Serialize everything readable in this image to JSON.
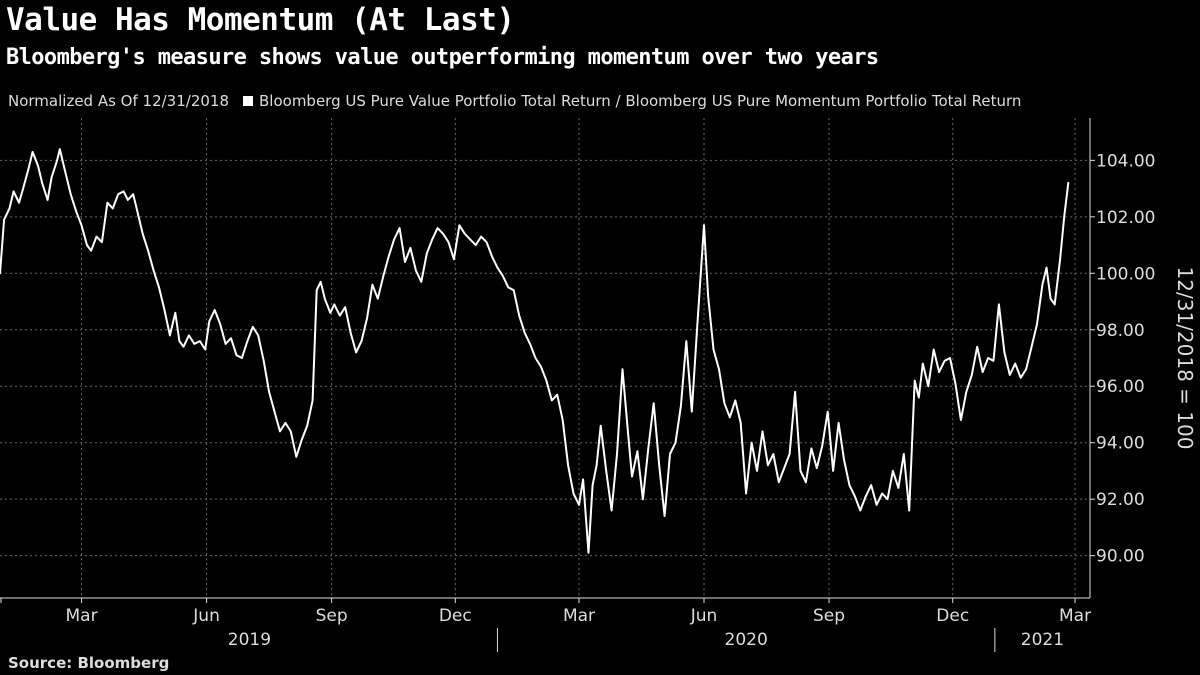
{
  "header": {
    "title": "Value Has Momentum (At Last)",
    "subtitle": "Bloomberg's measure shows value outperforming momentum over two years",
    "note": "Normalized As Of 12/31/2018",
    "legend_label": "Bloomberg US Pure Value Portfolio Total Return / Bloomberg US Pure Momentum Portfolio Total Return"
  },
  "footer": {
    "source": "Source: Bloomberg"
  },
  "colors": {
    "background": "#000000",
    "line": "#ffffff",
    "grid": "#666666",
    "text": "#dddddd"
  },
  "chart_data": {
    "type": "line",
    "title": "Value Has Momentum (At Last)",
    "ylabel": "12/31/2018 = 100",
    "xlabel": "",
    "ylim": [
      88.5,
      105.5
    ],
    "yticks": [
      "104.00",
      "102.00",
      "100.00",
      "98.00",
      "96.00",
      "94.00",
      "92.00",
      "90.00"
    ],
    "x_domain": [
      "2018-12-31",
      "2021-03-12"
    ],
    "x_ticks": [
      {
        "label": "Mar",
        "date": "2019-03-01"
      },
      {
        "label": "Jun",
        "date": "2019-06-01"
      },
      {
        "label": "Sep",
        "date": "2019-09-01"
      },
      {
        "label": "Dec",
        "date": "2019-12-01"
      },
      {
        "label": "Mar",
        "date": "2020-03-01"
      },
      {
        "label": "Jun",
        "date": "2020-06-01"
      },
      {
        "label": "Sep",
        "date": "2020-09-01"
      },
      {
        "label": "Dec",
        "date": "2020-12-01"
      },
      {
        "label": "Mar",
        "date": "2021-03-01"
      }
    ],
    "years": [
      {
        "label": "2019",
        "start": "2019-01-01",
        "end": "2020-01-01"
      },
      {
        "label": "2020",
        "start": "2020-01-01",
        "end": "2021-01-01"
      },
      {
        "label": "2021",
        "start": "2021-01-01",
        "end": "2021-03-12"
      }
    ],
    "year_separators": [
      "2020-01-01",
      "2021-01-01"
    ],
    "series": [
      {
        "name": "Bloomberg US Pure Value Portfolio Total Return / Bloomberg US Pure Momentum Portfolio Total Return",
        "points": [
          [
            "2018-12-31",
            100.0
          ],
          [
            "2019-01-03",
            101.9
          ],
          [
            "2019-01-07",
            102.3
          ],
          [
            "2019-01-10",
            102.9
          ],
          [
            "2019-01-14",
            102.5
          ],
          [
            "2019-01-17",
            103.0
          ],
          [
            "2019-01-21",
            103.7
          ],
          [
            "2019-01-24",
            104.3
          ],
          [
            "2019-01-28",
            103.8
          ],
          [
            "2019-01-31",
            103.2
          ],
          [
            "2019-02-04",
            102.6
          ],
          [
            "2019-02-07",
            103.4
          ],
          [
            "2019-02-11",
            104.0
          ],
          [
            "2019-02-13",
            104.4
          ],
          [
            "2019-02-17",
            103.6
          ],
          [
            "2019-02-21",
            102.8
          ],
          [
            "2019-02-25",
            102.2
          ],
          [
            "2019-03-01",
            101.7
          ],
          [
            "2019-03-05",
            101.0
          ],
          [
            "2019-03-08",
            100.8
          ],
          [
            "2019-03-12",
            101.3
          ],
          [
            "2019-03-16",
            101.1
          ],
          [
            "2019-03-20",
            102.5
          ],
          [
            "2019-03-24",
            102.3
          ],
          [
            "2019-03-28",
            102.8
          ],
          [
            "2019-04-01",
            102.9
          ],
          [
            "2019-04-04",
            102.6
          ],
          [
            "2019-04-08",
            102.8
          ],
          [
            "2019-04-11",
            102.2
          ],
          [
            "2019-04-15",
            101.4
          ],
          [
            "2019-04-19",
            100.8
          ],
          [
            "2019-04-23",
            100.1
          ],
          [
            "2019-04-27",
            99.5
          ],
          [
            "2019-05-01",
            98.7
          ],
          [
            "2019-05-05",
            97.8
          ],
          [
            "2019-05-09",
            98.6
          ],
          [
            "2019-05-12",
            97.6
          ],
          [
            "2019-05-15",
            97.4
          ],
          [
            "2019-05-19",
            97.8
          ],
          [
            "2019-05-23",
            97.5
          ],
          [
            "2019-05-27",
            97.6
          ],
          [
            "2019-05-31",
            97.3
          ],
          [
            "2019-06-03",
            98.3
          ],
          [
            "2019-06-07",
            98.7
          ],
          [
            "2019-06-11",
            98.2
          ],
          [
            "2019-06-15",
            97.5
          ],
          [
            "2019-06-19",
            97.7
          ],
          [
            "2019-06-23",
            97.1
          ],
          [
            "2019-06-27",
            97.0
          ],
          [
            "2019-07-01",
            97.6
          ],
          [
            "2019-07-05",
            98.1
          ],
          [
            "2019-07-09",
            97.8
          ],
          [
            "2019-07-13",
            96.9
          ],
          [
            "2019-07-17",
            95.8
          ],
          [
            "2019-07-21",
            95.1
          ],
          [
            "2019-07-25",
            94.4
          ],
          [
            "2019-07-29",
            94.7
          ],
          [
            "2019-08-02",
            94.4
          ],
          [
            "2019-08-06",
            93.5
          ],
          [
            "2019-08-10",
            94.1
          ],
          [
            "2019-08-14",
            94.6
          ],
          [
            "2019-08-18",
            95.5
          ],
          [
            "2019-08-21",
            99.4
          ],
          [
            "2019-08-24",
            99.7
          ],
          [
            "2019-08-27",
            99.1
          ],
          [
            "2019-08-31",
            98.6
          ],
          [
            "2019-09-03",
            98.9
          ],
          [
            "2019-09-07",
            98.5
          ],
          [
            "2019-09-11",
            98.8
          ],
          [
            "2019-09-15",
            97.9
          ],
          [
            "2019-09-19",
            97.2
          ],
          [
            "2019-09-23",
            97.6
          ],
          [
            "2019-09-27",
            98.4
          ],
          [
            "2019-10-01",
            99.6
          ],
          [
            "2019-10-05",
            99.1
          ],
          [
            "2019-10-09",
            99.9
          ],
          [
            "2019-10-13",
            100.6
          ],
          [
            "2019-10-17",
            101.2
          ],
          [
            "2019-10-21",
            101.6
          ],
          [
            "2019-10-25",
            100.4
          ],
          [
            "2019-10-29",
            100.9
          ],
          [
            "2019-11-02",
            100.1
          ],
          [
            "2019-11-06",
            99.7
          ],
          [
            "2019-11-10",
            100.7
          ],
          [
            "2019-11-14",
            101.2
          ],
          [
            "2019-11-18",
            101.6
          ],
          [
            "2019-11-22",
            101.4
          ],
          [
            "2019-11-26",
            101.1
          ],
          [
            "2019-11-30",
            100.5
          ],
          [
            "2019-12-04",
            101.7
          ],
          [
            "2019-12-08",
            101.4
          ],
          [
            "2019-12-12",
            101.2
          ],
          [
            "2019-12-16",
            101.0
          ],
          [
            "2019-12-20",
            101.3
          ],
          [
            "2019-12-24",
            101.1
          ],
          [
            "2019-12-28",
            100.6
          ],
          [
            "2020-01-01",
            100.2
          ],
          [
            "2020-01-05",
            99.9
          ],
          [
            "2020-01-09",
            99.5
          ],
          [
            "2020-01-13",
            99.4
          ],
          [
            "2020-01-17",
            98.5
          ],
          [
            "2020-01-21",
            97.9
          ],
          [
            "2020-01-25",
            97.5
          ],
          [
            "2020-01-29",
            97.0
          ],
          [
            "2020-02-02",
            96.7
          ],
          [
            "2020-02-06",
            96.2
          ],
          [
            "2020-02-10",
            95.5
          ],
          [
            "2020-02-14",
            95.7
          ],
          [
            "2020-02-18",
            94.8
          ],
          [
            "2020-02-22",
            93.2
          ],
          [
            "2020-02-26",
            92.2
          ],
          [
            "2020-03-01",
            91.8
          ],
          [
            "2020-03-04",
            92.7
          ],
          [
            "2020-03-08",
            90.1
          ],
          [
            "2020-03-11",
            92.5
          ],
          [
            "2020-03-14",
            93.2
          ],
          [
            "2020-03-17",
            94.6
          ],
          [
            "2020-03-21",
            93.0
          ],
          [
            "2020-03-25",
            91.6
          ],
          [
            "2020-03-29",
            93.6
          ],
          [
            "2020-04-02",
            96.6
          ],
          [
            "2020-04-06",
            94.4
          ],
          [
            "2020-04-09",
            92.8
          ],
          [
            "2020-04-13",
            93.7
          ],
          [
            "2020-04-17",
            92.0
          ],
          [
            "2020-04-21",
            93.8
          ],
          [
            "2020-04-25",
            95.4
          ],
          [
            "2020-04-29",
            93.2
          ],
          [
            "2020-05-03",
            91.4
          ],
          [
            "2020-05-07",
            93.6
          ],
          [
            "2020-05-11",
            94.0
          ],
          [
            "2020-05-15",
            95.3
          ],
          [
            "2020-05-19",
            97.6
          ],
          [
            "2020-05-23",
            95.1
          ],
          [
            "2020-05-27",
            98.1
          ],
          [
            "2020-06-01",
            101.7
          ],
          [
            "2020-06-04",
            99.2
          ],
          [
            "2020-06-08",
            97.3
          ],
          [
            "2020-06-12",
            96.6
          ],
          [
            "2020-06-16",
            95.4
          ],
          [
            "2020-06-20",
            94.9
          ],
          [
            "2020-06-24",
            95.5
          ],
          [
            "2020-06-28",
            94.7
          ],
          [
            "2020-07-02",
            92.2
          ],
          [
            "2020-07-06",
            94.0
          ],
          [
            "2020-07-10",
            93.0
          ],
          [
            "2020-07-14",
            94.4
          ],
          [
            "2020-07-18",
            93.2
          ],
          [
            "2020-07-22",
            93.6
          ],
          [
            "2020-07-26",
            92.6
          ],
          [
            "2020-07-30",
            93.1
          ],
          [
            "2020-08-03",
            93.6
          ],
          [
            "2020-08-07",
            95.8
          ],
          [
            "2020-08-11",
            93.0
          ],
          [
            "2020-08-15",
            92.6
          ],
          [
            "2020-08-19",
            93.8
          ],
          [
            "2020-08-23",
            93.1
          ],
          [
            "2020-08-27",
            93.9
          ],
          [
            "2020-08-31",
            95.1
          ],
          [
            "2020-09-04",
            93.0
          ],
          [
            "2020-09-08",
            94.7
          ],
          [
            "2020-09-12",
            93.4
          ],
          [
            "2020-09-16",
            92.5
          ],
          [
            "2020-09-20",
            92.1
          ],
          [
            "2020-09-24",
            91.6
          ],
          [
            "2020-09-28",
            92.1
          ],
          [
            "2020-10-02",
            92.5
          ],
          [
            "2020-10-06",
            91.8
          ],
          [
            "2020-10-10",
            92.2
          ],
          [
            "2020-10-14",
            92.0
          ],
          [
            "2020-10-18",
            93.0
          ],
          [
            "2020-10-22",
            92.4
          ],
          [
            "2020-10-26",
            93.6
          ],
          [
            "2020-10-30",
            91.6
          ],
          [
            "2020-11-03",
            96.2
          ],
          [
            "2020-11-06",
            95.6
          ],
          [
            "2020-11-09",
            96.8
          ],
          [
            "2020-11-13",
            96.0
          ],
          [
            "2020-11-17",
            97.3
          ],
          [
            "2020-11-21",
            96.5
          ],
          [
            "2020-11-25",
            96.9
          ],
          [
            "2020-11-29",
            97.0
          ],
          [
            "2020-12-03",
            96.1
          ],
          [
            "2020-12-07",
            94.8
          ],
          [
            "2020-12-11",
            95.8
          ],
          [
            "2020-12-15",
            96.4
          ],
          [
            "2020-12-19",
            97.4
          ],
          [
            "2020-12-23",
            96.5
          ],
          [
            "2020-12-27",
            97.0
          ],
          [
            "2020-12-31",
            96.9
          ],
          [
            "2021-01-04",
            98.9
          ],
          [
            "2021-01-08",
            97.2
          ],
          [
            "2021-01-12",
            96.4
          ],
          [
            "2021-01-16",
            96.8
          ],
          [
            "2021-01-20",
            96.3
          ],
          [
            "2021-01-24",
            96.6
          ],
          [
            "2021-01-28",
            97.4
          ],
          [
            "2021-02-01",
            98.2
          ],
          [
            "2021-02-05",
            99.6
          ],
          [
            "2021-02-08",
            100.2
          ],
          [
            "2021-02-11",
            99.1
          ],
          [
            "2021-02-14",
            98.9
          ],
          [
            "2021-02-18",
            100.5
          ],
          [
            "2021-02-21",
            102.0
          ],
          [
            "2021-02-24",
            103.2
          ]
        ]
      }
    ]
  }
}
